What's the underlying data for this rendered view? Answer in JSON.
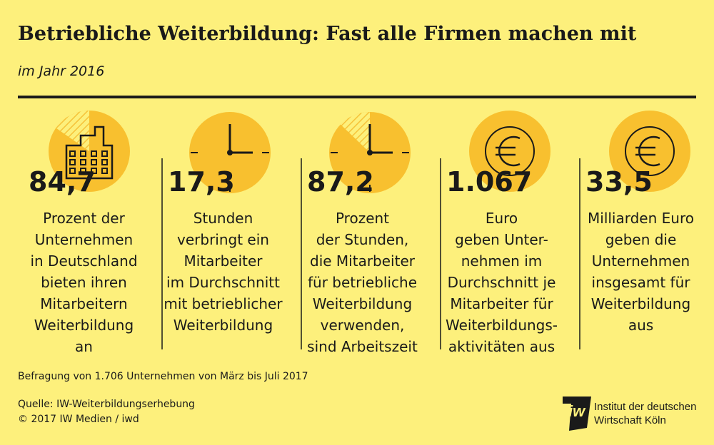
{
  "header": {
    "title": "Betriebliche Weiterbildung: Fast alle Firmen machen mit",
    "subtitle": "im Jahr 2016"
  },
  "items": [
    {
      "value": "84,7",
      "lines": [
        "Prozent der",
        "Unternehmen",
        "in Deutschland",
        "bieten ihren",
        "Mitarbeitern",
        "Weiterbildung",
        "an"
      ]
    },
    {
      "value": "17,3",
      "lines": [
        "Stunden",
        "verbringt ein",
        "Mitarbeiter",
        "im Durchschnitt",
        "mit betrieblicher",
        "Weiterbildung"
      ]
    },
    {
      "value": "87,2",
      "lines": [
        "Prozent",
        "der Stunden,",
        "die Mitarbeiter",
        "für betriebliche",
        "Weiterbildung",
        "verwenden,",
        "sind Arbeitszeit"
      ]
    },
    {
      "value": "1.067",
      "lines": [
        "Euro",
        "geben Unter-",
        "nehmen im",
        "Durchschnitt je",
        "Mitarbeiter für",
        "Weiterbildungs-",
        "aktivitäten aus"
      ]
    },
    {
      "value": "33,5",
      "lines": [
        "Milliarden Euro",
        "geben die",
        "Unternehmen",
        "insgesamt für",
        "Weiterbildung",
        "aus"
      ]
    }
  ],
  "footer": {
    "note": "Befragung von 1.706 Unternehmen von März bis Juli 2017",
    "source": "Quelle: IW-Weiterbildungserhebung",
    "copyright": "© 2017 IW Medien / iwd"
  },
  "logo": {
    "line1": "Institut der deutschen",
    "line2": "Wirtschaft Köln"
  }
}
